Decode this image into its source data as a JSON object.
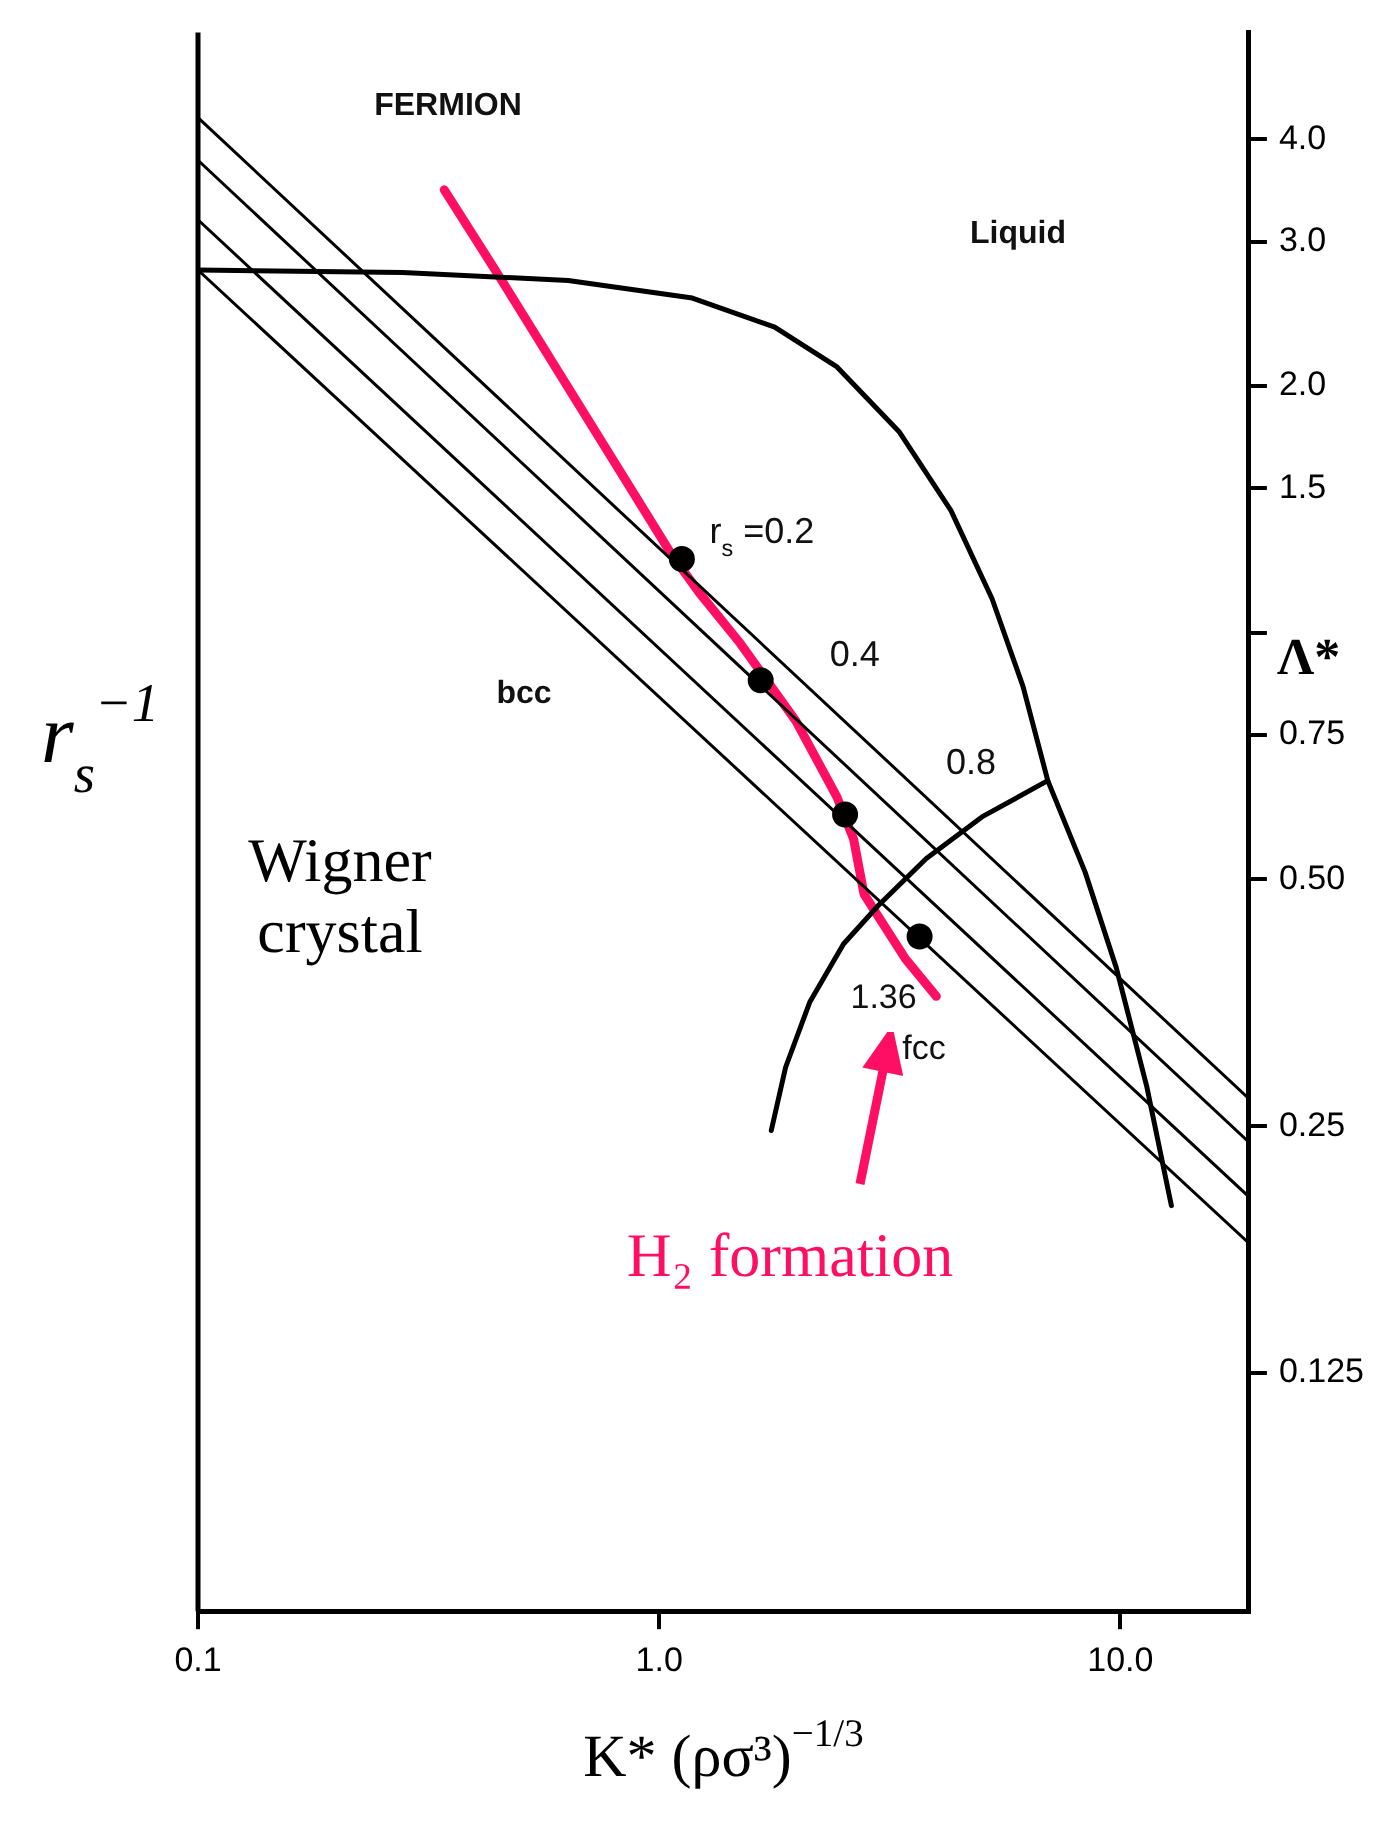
{
  "chart_data": {
    "type": "line",
    "xlabel": "K* (ρσ³)$^{−1/3}$",
    "ylabel": "Λ*",
    "log": "xy",
    "grid": false,
    "legend": false,
    "marker": "none",
    "line_style": "solid",
    "xlim": [
      0.1,
      19
    ],
    "xticks": [
      {
        "value": 0.1,
        "label": "0.1"
      },
      {
        "value": 1,
        "label": "1.0"
      },
      {
        "value": 10,
        "label": "10.0"
      }
    ],
    "ylim": [
      0.064,
      5.4
    ],
    "yticks": [
      {
        "value": 4,
        "label": "4.0"
      },
      {
        "value": 3,
        "label": "3.0"
      },
      {
        "value": 2,
        "label": "2.0"
      },
      1.5,
      {
        "value": 1,
        "label": null
      },
      0.75,
      {
        "value": 0.5,
        "label": "0.50"
      },
      0.25,
      0.125
    ],
    "series": [
      {
        "type": "line",
        "color": "#000000",
        "x": [
          0.1,
          19
        ],
        "values": [
          4.25,
          0.27
        ]
      },
      {
        "type": "line",
        "color": "#000000",
        "x": [
          0.1,
          19
        ],
        "values": [
          3.77,
          0.239
        ]
      },
      {
        "type": "line",
        "color": "#000000",
        "x": [
          0.1,
          19
        ],
        "values": [
          3.19,
          0.205
        ]
      },
      {
        "type": "line",
        "color": "#000000",
        "x": [
          0.1,
          19
        ],
        "values": [
          2.77,
          0.18
        ]
      },
      {
        "type": "line",
        "color": "#000000",
        "x": [
          0.1,
          0.278,
          0.635,
          1.18,
          1.78,
          2.43,
          3.31,
          4.29,
          5.27,
          6.15,
          6.96,
          8.39,
          9.8,
          11.4,
          12.9
        ],
        "values": [
          2.77,
          2.75,
          2.69,
          2.56,
          2.36,
          2.11,
          1.76,
          1.41,
          1.1,
          0.86,
          0.66,
          0.51,
          0.39,
          0.28,
          0.2
        ]
      },
      {
        "type": "line",
        "color": "#000000",
        "x": [
          1.75,
          1.88,
          2.12,
          2.51,
          2.99,
          3.79,
          5.01,
          6.96
        ],
        "values": [
          0.247,
          0.295,
          0.354,
          0.417,
          0.465,
          0.53,
          0.596,
          0.66
        ]
      },
      {
        "type": "line",
        "color": "#ff0f64",
        "x": [
          0.342,
          0.452,
          1.06,
          1.22,
          1.5,
          1.98,
          2.43,
          2.64,
          2.78,
          2.99,
          3.42,
          3.99
        ],
        "values": [
          3.47,
          2.71,
          1.25,
          1.12,
          0.97,
          0.78,
          0.63,
          0.56,
          0.48,
          0.45,
          0.4,
          0.36
        ]
      },
      {
        "type": "scatter",
        "marker": "circle",
        "color": "#000000",
        "x": [
          1.12,
          1.66,
          2.53,
          3.67
        ],
        "values": [
          1.23,
          0.875,
          0.6,
          0.426
        ]
      }
    ],
    "annotations": [
      "FERMION",
      "Liquid",
      "bcc",
      {
        "text": "r$_{s}$ =0.2",
        "x": 1.12,
        "y": 1.23
      },
      {
        "text": "0.4",
        "x": 1.66,
        "y": 0.875
      },
      {
        "text": "0.8",
        "x": 2.53,
        "y": 0.6
      },
      {
        "text": "1.36",
        "x": 3.67,
        "y": 0.426
      },
      "fcc",
      "Wigner crystal",
      "H₂ formation",
      "r$_{s}$$^{−1}$"
    ]
  }
}
